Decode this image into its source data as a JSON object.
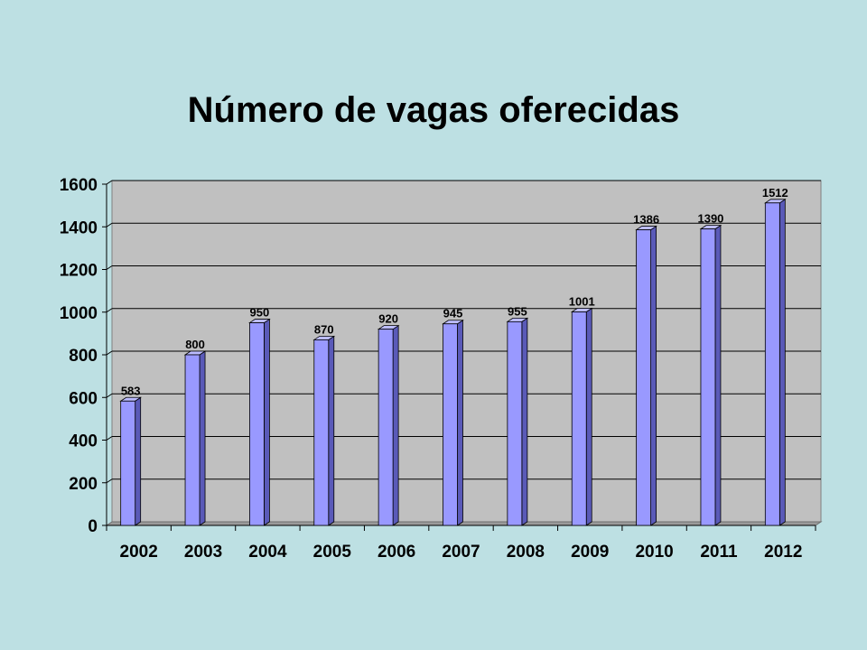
{
  "chart_data": {
    "type": "bar",
    "title": "Número de vagas oferecidas",
    "xlabel": "",
    "ylabel": "",
    "categories": [
      "2002",
      "2003",
      "2004",
      "2005",
      "2006",
      "2007",
      "2008",
      "2009",
      "2010",
      "2011",
      "2012"
    ],
    "values": [
      583,
      800,
      950,
      870,
      920,
      945,
      955,
      1001,
      1386,
      1390,
      1512
    ],
    "data_labels": [
      "583",
      "800",
      "950",
      "870",
      "920",
      "945",
      "955",
      "1001",
      "1386",
      "1390",
      "1512"
    ],
    "ylim": [
      0,
      1600
    ],
    "yticks": [
      0,
      200,
      400,
      600,
      800,
      1000,
      1200,
      1400,
      1600
    ],
    "ytick_labels": [
      "0",
      "200",
      "400",
      "600",
      "800",
      "1000",
      "1200",
      "1400",
      "1600"
    ],
    "grid": true,
    "legend": "none",
    "style": "3d-column",
    "colors": {
      "bar_front": "#9999ff",
      "bar_side": "#5a5ab8",
      "bar_top": "#bcbcff",
      "plot_back": "#c0c0c0",
      "floor": "#9a9a9a",
      "background": "#bde0e3",
      "gridline": "#000000"
    }
  }
}
